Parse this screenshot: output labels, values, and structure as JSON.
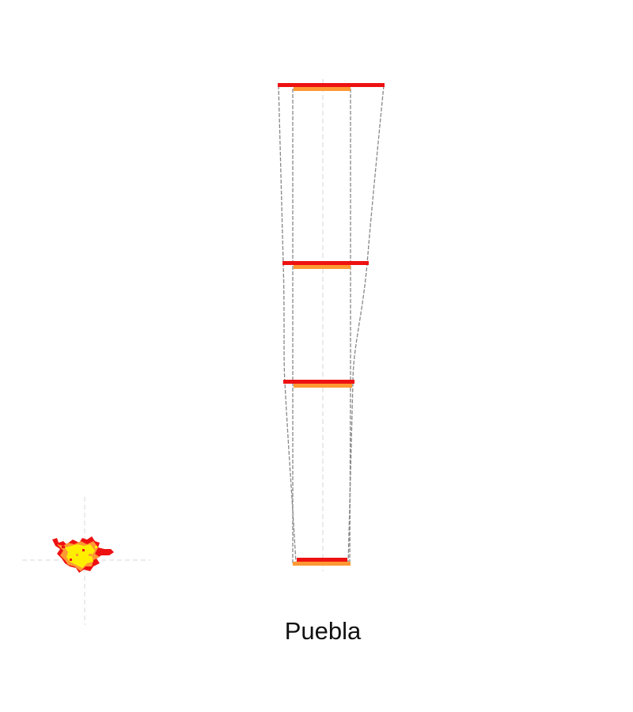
{
  "title": "Puebla",
  "colors": {
    "series_a": "#ee1111",
    "series_b": "#ff9933",
    "outline": "#888888",
    "axis": "#d4d4d4",
    "blob_core": "#ffee00"
  }
}
